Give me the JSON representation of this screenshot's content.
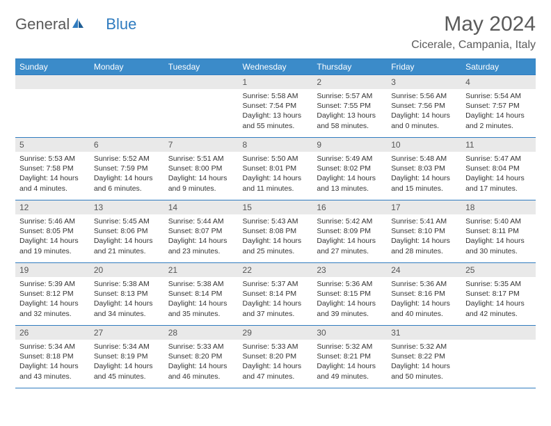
{
  "brand": {
    "part1": "General",
    "part2": "Blue"
  },
  "title": "May 2024",
  "location": "Cicerale, Campania, Italy",
  "colors": {
    "header_bg": "#3b8bc9",
    "header_text": "#ffffff",
    "border": "#2f7bbf",
    "daynum_bg": "#e9e9e9",
    "text": "#333333",
    "muted": "#5a5a5a"
  },
  "weekdays": [
    "Sunday",
    "Monday",
    "Tuesday",
    "Wednesday",
    "Thursday",
    "Friday",
    "Saturday"
  ],
  "cells": [
    {
      "day": "",
      "sunrise": "",
      "sunset": "",
      "daylight": ""
    },
    {
      "day": "",
      "sunrise": "",
      "sunset": "",
      "daylight": ""
    },
    {
      "day": "",
      "sunrise": "",
      "sunset": "",
      "daylight": ""
    },
    {
      "day": "1",
      "sunrise": "Sunrise: 5:58 AM",
      "sunset": "Sunset: 7:54 PM",
      "daylight": "Daylight: 13 hours and 55 minutes."
    },
    {
      "day": "2",
      "sunrise": "Sunrise: 5:57 AM",
      "sunset": "Sunset: 7:55 PM",
      "daylight": "Daylight: 13 hours and 58 minutes."
    },
    {
      "day": "3",
      "sunrise": "Sunrise: 5:56 AM",
      "sunset": "Sunset: 7:56 PM",
      "daylight": "Daylight: 14 hours and 0 minutes."
    },
    {
      "day": "4",
      "sunrise": "Sunrise: 5:54 AM",
      "sunset": "Sunset: 7:57 PM",
      "daylight": "Daylight: 14 hours and 2 minutes."
    },
    {
      "day": "5",
      "sunrise": "Sunrise: 5:53 AM",
      "sunset": "Sunset: 7:58 PM",
      "daylight": "Daylight: 14 hours and 4 minutes."
    },
    {
      "day": "6",
      "sunrise": "Sunrise: 5:52 AM",
      "sunset": "Sunset: 7:59 PM",
      "daylight": "Daylight: 14 hours and 6 minutes."
    },
    {
      "day": "7",
      "sunrise": "Sunrise: 5:51 AM",
      "sunset": "Sunset: 8:00 PM",
      "daylight": "Daylight: 14 hours and 9 minutes."
    },
    {
      "day": "8",
      "sunrise": "Sunrise: 5:50 AM",
      "sunset": "Sunset: 8:01 PM",
      "daylight": "Daylight: 14 hours and 11 minutes."
    },
    {
      "day": "9",
      "sunrise": "Sunrise: 5:49 AM",
      "sunset": "Sunset: 8:02 PM",
      "daylight": "Daylight: 14 hours and 13 minutes."
    },
    {
      "day": "10",
      "sunrise": "Sunrise: 5:48 AM",
      "sunset": "Sunset: 8:03 PM",
      "daylight": "Daylight: 14 hours and 15 minutes."
    },
    {
      "day": "11",
      "sunrise": "Sunrise: 5:47 AM",
      "sunset": "Sunset: 8:04 PM",
      "daylight": "Daylight: 14 hours and 17 minutes."
    },
    {
      "day": "12",
      "sunrise": "Sunrise: 5:46 AM",
      "sunset": "Sunset: 8:05 PM",
      "daylight": "Daylight: 14 hours and 19 minutes."
    },
    {
      "day": "13",
      "sunrise": "Sunrise: 5:45 AM",
      "sunset": "Sunset: 8:06 PM",
      "daylight": "Daylight: 14 hours and 21 minutes."
    },
    {
      "day": "14",
      "sunrise": "Sunrise: 5:44 AM",
      "sunset": "Sunset: 8:07 PM",
      "daylight": "Daylight: 14 hours and 23 minutes."
    },
    {
      "day": "15",
      "sunrise": "Sunrise: 5:43 AM",
      "sunset": "Sunset: 8:08 PM",
      "daylight": "Daylight: 14 hours and 25 minutes."
    },
    {
      "day": "16",
      "sunrise": "Sunrise: 5:42 AM",
      "sunset": "Sunset: 8:09 PM",
      "daylight": "Daylight: 14 hours and 27 minutes."
    },
    {
      "day": "17",
      "sunrise": "Sunrise: 5:41 AM",
      "sunset": "Sunset: 8:10 PM",
      "daylight": "Daylight: 14 hours and 28 minutes."
    },
    {
      "day": "18",
      "sunrise": "Sunrise: 5:40 AM",
      "sunset": "Sunset: 8:11 PM",
      "daylight": "Daylight: 14 hours and 30 minutes."
    },
    {
      "day": "19",
      "sunrise": "Sunrise: 5:39 AM",
      "sunset": "Sunset: 8:12 PM",
      "daylight": "Daylight: 14 hours and 32 minutes."
    },
    {
      "day": "20",
      "sunrise": "Sunrise: 5:38 AM",
      "sunset": "Sunset: 8:13 PM",
      "daylight": "Daylight: 14 hours and 34 minutes."
    },
    {
      "day": "21",
      "sunrise": "Sunrise: 5:38 AM",
      "sunset": "Sunset: 8:14 PM",
      "daylight": "Daylight: 14 hours and 35 minutes."
    },
    {
      "day": "22",
      "sunrise": "Sunrise: 5:37 AM",
      "sunset": "Sunset: 8:14 PM",
      "daylight": "Daylight: 14 hours and 37 minutes."
    },
    {
      "day": "23",
      "sunrise": "Sunrise: 5:36 AM",
      "sunset": "Sunset: 8:15 PM",
      "daylight": "Daylight: 14 hours and 39 minutes."
    },
    {
      "day": "24",
      "sunrise": "Sunrise: 5:36 AM",
      "sunset": "Sunset: 8:16 PM",
      "daylight": "Daylight: 14 hours and 40 minutes."
    },
    {
      "day": "25",
      "sunrise": "Sunrise: 5:35 AM",
      "sunset": "Sunset: 8:17 PM",
      "daylight": "Daylight: 14 hours and 42 minutes."
    },
    {
      "day": "26",
      "sunrise": "Sunrise: 5:34 AM",
      "sunset": "Sunset: 8:18 PM",
      "daylight": "Daylight: 14 hours and 43 minutes."
    },
    {
      "day": "27",
      "sunrise": "Sunrise: 5:34 AM",
      "sunset": "Sunset: 8:19 PM",
      "daylight": "Daylight: 14 hours and 45 minutes."
    },
    {
      "day": "28",
      "sunrise": "Sunrise: 5:33 AM",
      "sunset": "Sunset: 8:20 PM",
      "daylight": "Daylight: 14 hours and 46 minutes."
    },
    {
      "day": "29",
      "sunrise": "Sunrise: 5:33 AM",
      "sunset": "Sunset: 8:20 PM",
      "daylight": "Daylight: 14 hours and 47 minutes."
    },
    {
      "day": "30",
      "sunrise": "Sunrise: 5:32 AM",
      "sunset": "Sunset: 8:21 PM",
      "daylight": "Daylight: 14 hours and 49 minutes."
    },
    {
      "day": "31",
      "sunrise": "Sunrise: 5:32 AM",
      "sunset": "Sunset: 8:22 PM",
      "daylight": "Daylight: 14 hours and 50 minutes."
    },
    {
      "day": "",
      "sunrise": "",
      "sunset": "",
      "daylight": ""
    }
  ]
}
